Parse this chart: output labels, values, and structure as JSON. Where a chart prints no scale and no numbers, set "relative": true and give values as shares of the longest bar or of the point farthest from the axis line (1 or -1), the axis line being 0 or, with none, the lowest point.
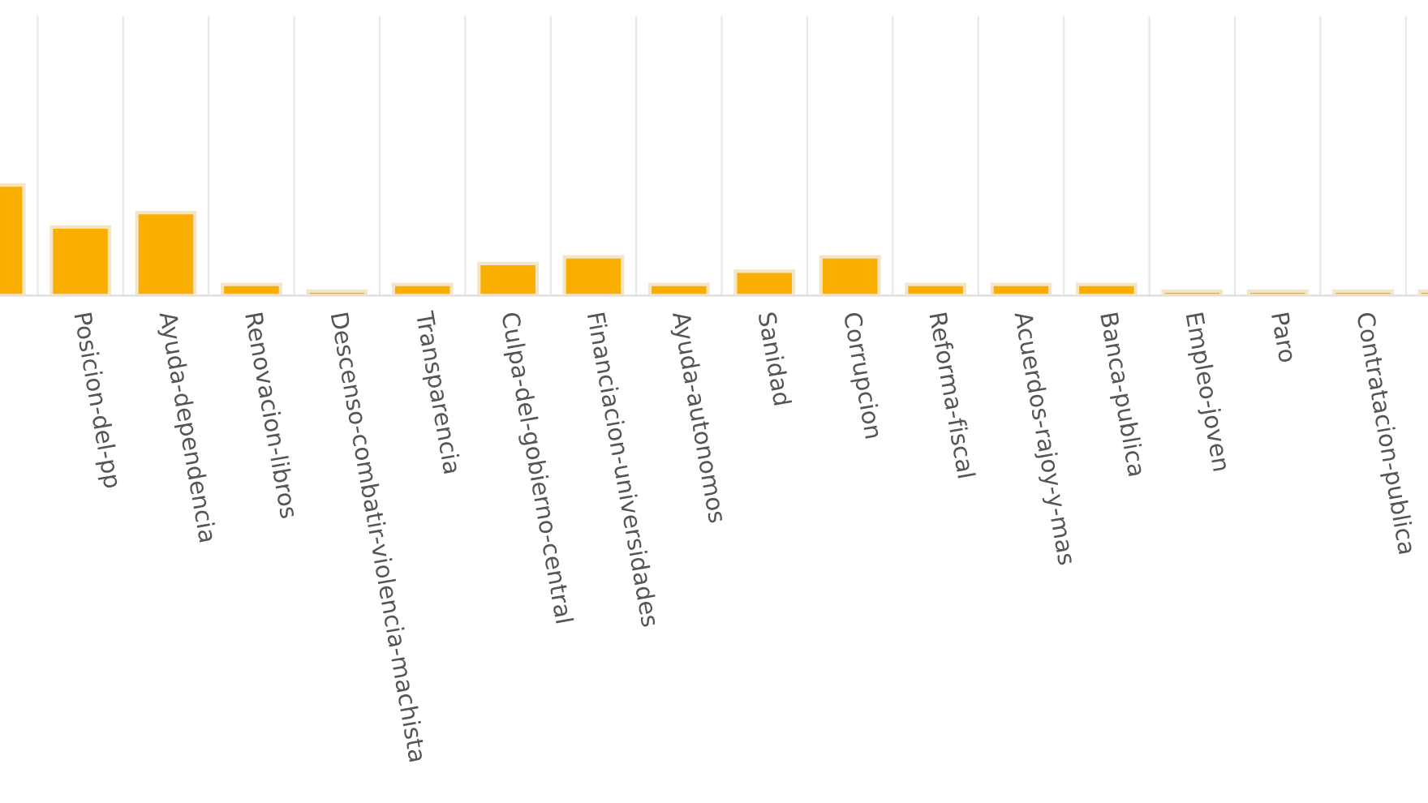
{
  "chart_data": {
    "type": "bar",
    "relative": true,
    "grid": "x",
    "color": "#f9ae00",
    "categories": [
      null,
      "Posicion-del-pp",
      "Ayuda-dependencia",
      "Renovacion-libros",
      "Descenso-combatir-violencia-machista",
      "Transparencia",
      "Culpa-del-gobierno-central",
      "Financiacion-universidades",
      "Ayuda-autonomos",
      "Sanidad",
      "Corrupcion",
      "Reforma-fiscal",
      "Acuerdos-rajoy-y-mas",
      "Banca-publica",
      "Empleo-joven",
      "Paro",
      "Contratacion-publica",
      null
    ],
    "values": [
      1,
      0.62,
      0.75,
      0.1,
      0.04,
      0.1,
      0.29,
      0.35,
      0.1,
      0.22,
      0.35,
      0.1,
      0.1,
      0.1,
      0.04,
      0.04,
      0.04,
      0.04
    ]
  }
}
